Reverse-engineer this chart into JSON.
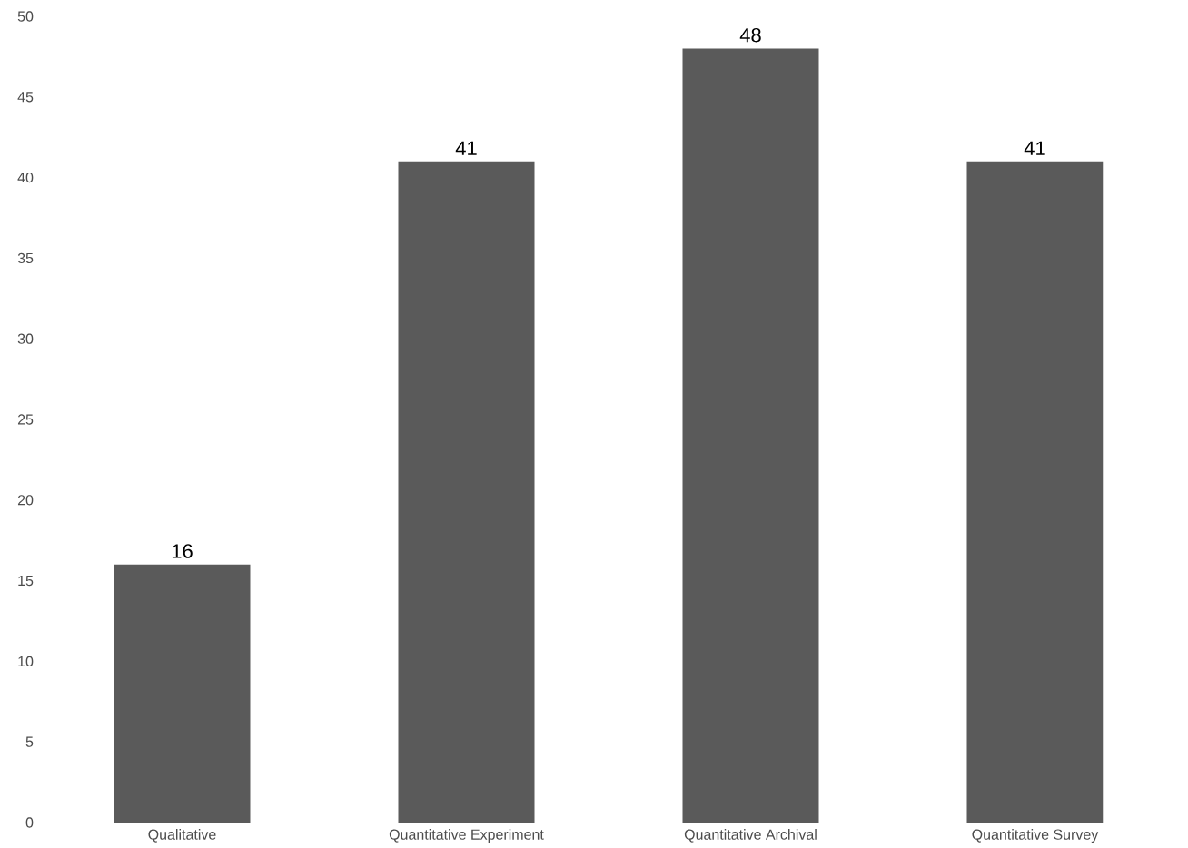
{
  "chart_data": {
    "type": "bar",
    "categories": [
      "Qualitative",
      "Quantitative Experiment",
      "Quantitative Archival",
      "Quantitative Survey"
    ],
    "values": [
      16,
      41,
      48,
      41
    ],
    "color": "#5a5a5a",
    "ylim": [
      0,
      50
    ],
    "yticks": [
      0,
      5,
      10,
      15,
      20,
      25,
      30,
      35,
      40,
      45,
      50
    ],
    "data_labels": true
  }
}
